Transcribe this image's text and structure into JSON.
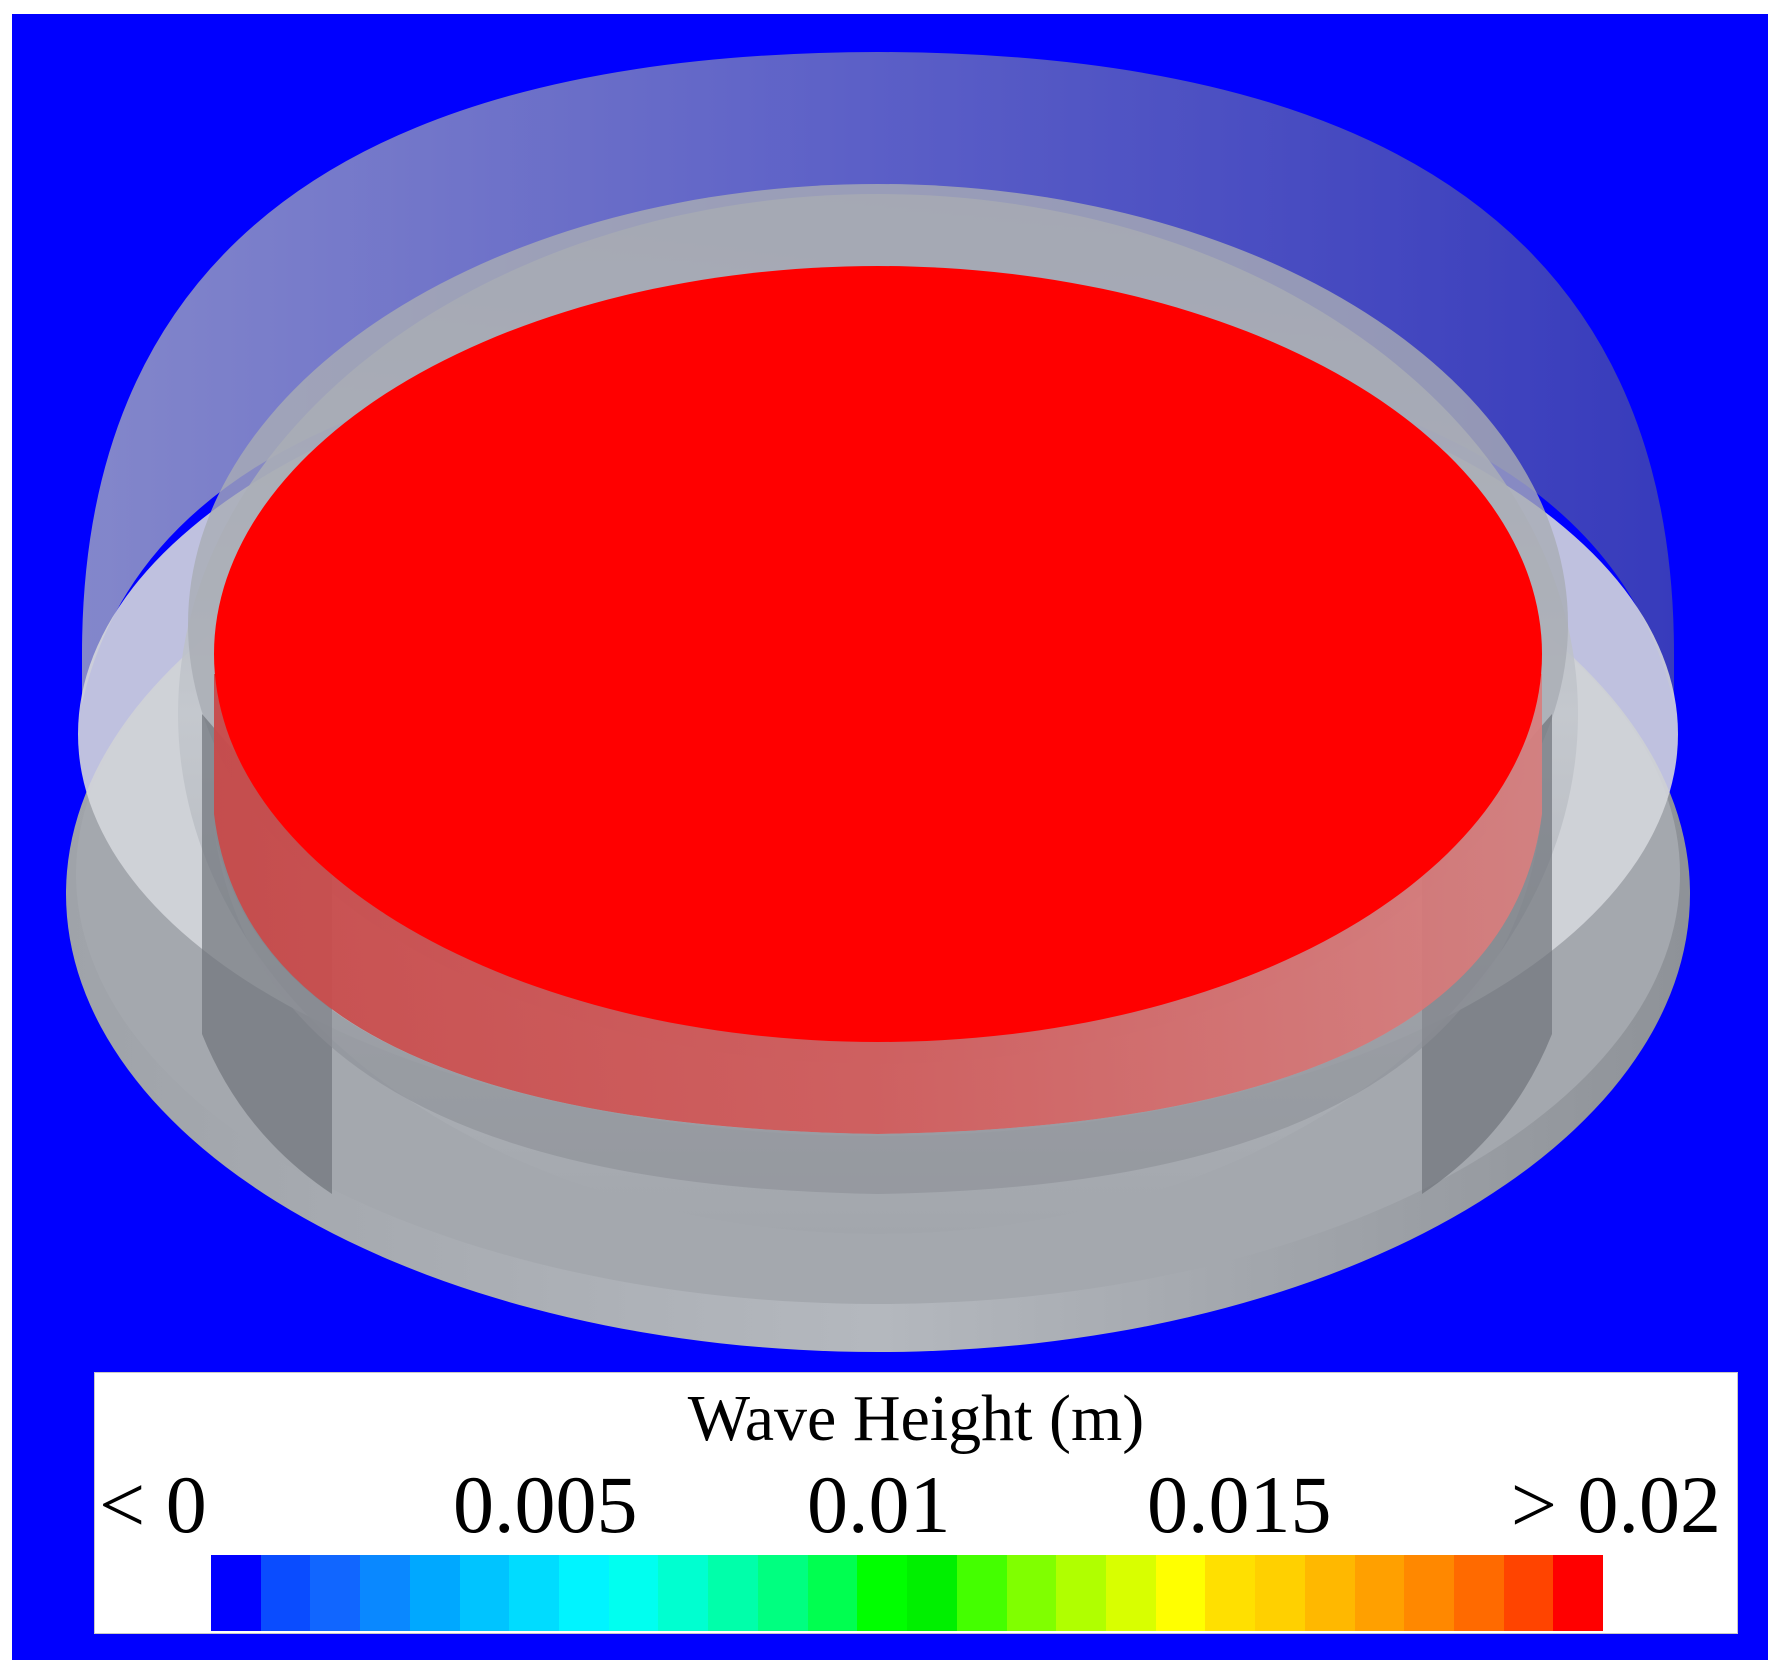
{
  "colors": {
    "background": "#0000ff",
    "surface": "#ff0000",
    "tank_wall": "#b8bcc2",
    "tank_dark": "#6e7278"
  },
  "legend": {
    "title": "Wave Height (m)",
    "tick_labels": [
      "< 0",
      "0.005",
      "0.01",
      "0.015",
      "> 0.02"
    ],
    "colormap": [
      "#0000ff",
      "#0a4cff",
      "#1166ff",
      "#0a88ff",
      "#00a8ff",
      "#00c4ff",
      "#00dcff",
      "#00f4ff",
      "#00fff0",
      "#00ffd0",
      "#00ffaa",
      "#00ff80",
      "#00ff50",
      "#00ff00",
      "#00f000",
      "#44ff00",
      "#80ff00",
      "#b0ff00",
      "#d8ff00",
      "#ffff00",
      "#ffe000",
      "#ffd000",
      "#ffb800",
      "#ffa000",
      "#ff8800",
      "#ff6a00",
      "#ff4400",
      "#ff0000"
    ]
  }
}
